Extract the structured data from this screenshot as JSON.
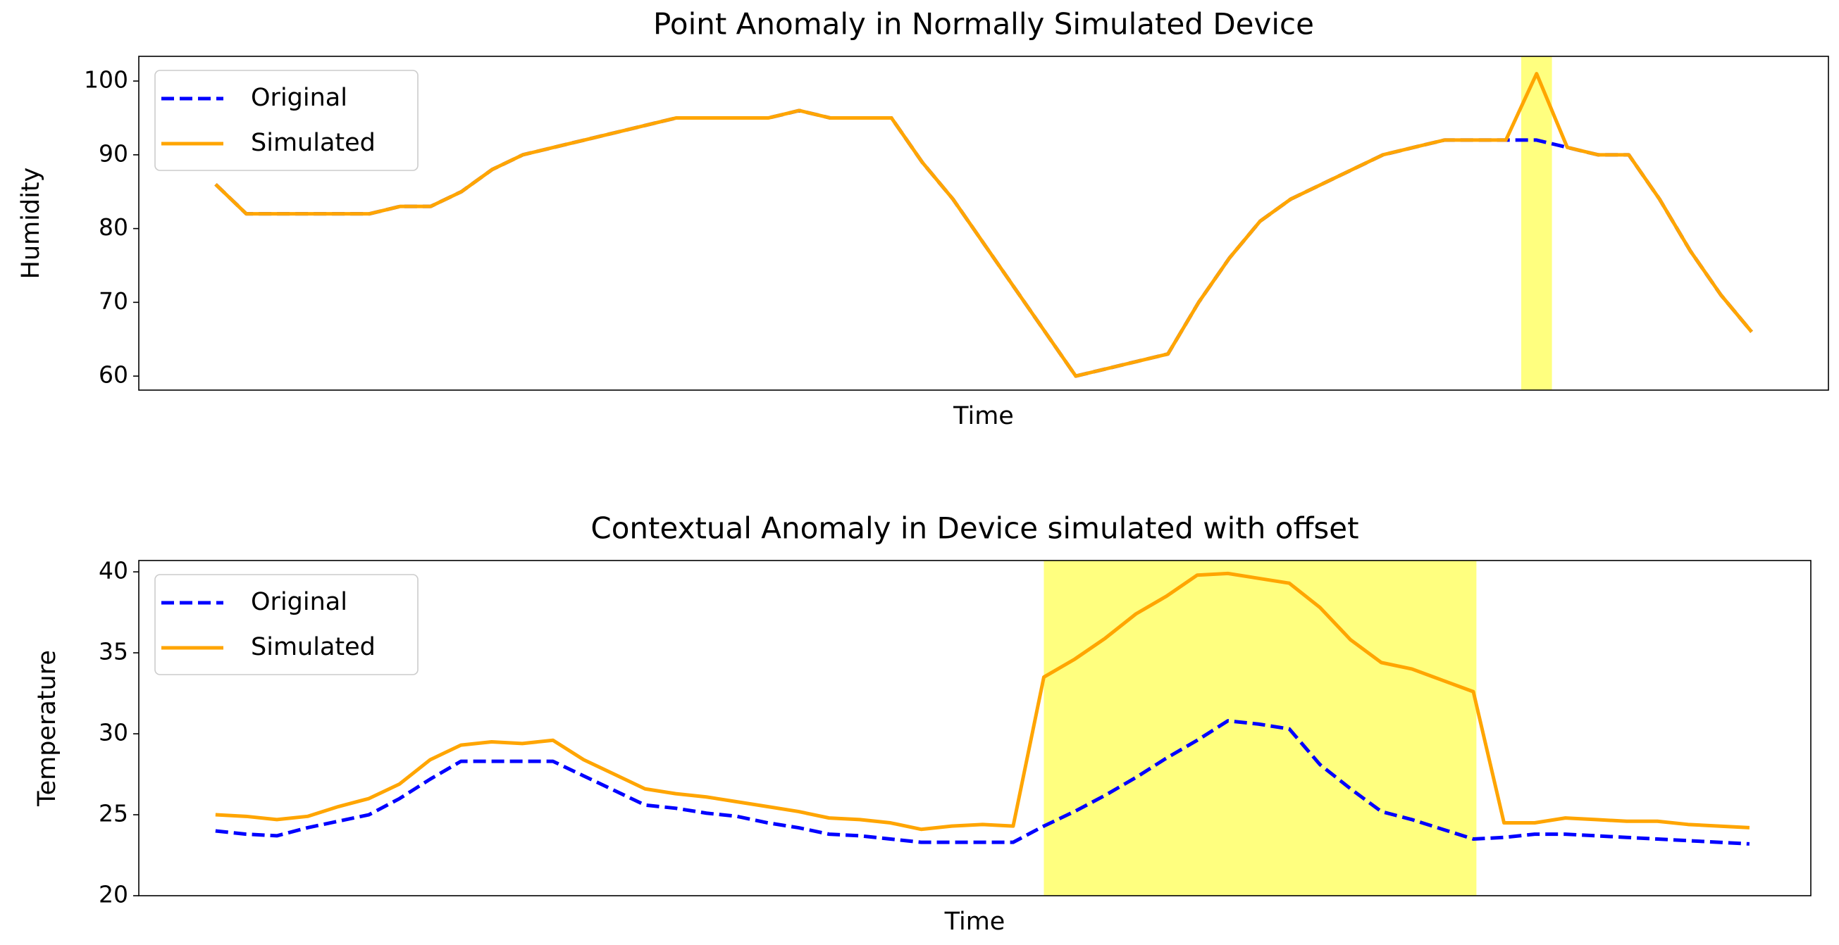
{
  "chart_data": [
    {
      "type": "line",
      "title": "Point Anomaly in Normally Simulated Device",
      "x_label": "Time",
      "y_label": "Humidity",
      "xlim": [
        -2.5,
        52.5
      ],
      "ylim": [
        58.1,
        103.35
      ],
      "yticks": [
        60,
        70,
        80,
        90,
        100
      ],
      "legend": "upper left",
      "highlight": {
        "span": [
          42.5,
          43.5
        ],
        "color": "#ffff00"
      },
      "series": [
        {
          "name": "Original",
          "color": "#0000ff",
          "dash": true,
          "values": [
            86,
            82,
            82,
            82,
            82,
            82,
            83,
            83,
            85,
            88,
            90,
            91,
            92,
            93,
            94,
            95,
            95,
            95,
            95,
            96,
            95,
            95,
            95,
            89,
            84,
            78,
            72,
            66,
            60,
            61,
            62,
            63,
            70,
            76,
            81,
            84,
            86,
            88,
            90,
            91,
            92,
            92,
            92,
            92,
            91,
            90,
            90,
            84,
            77,
            71,
            66
          ]
        },
        {
          "name": "Simulated",
          "color": "#ffa500",
          "dash": false,
          "values": [
            86,
            82,
            82,
            82,
            82,
            82,
            83,
            83,
            85,
            88,
            90,
            91,
            92,
            93,
            94,
            95,
            95,
            95,
            95,
            96,
            95,
            95,
            95,
            89,
            84,
            78,
            72,
            66,
            60,
            61,
            62,
            63,
            70,
            76,
            81,
            84,
            86,
            88,
            90,
            91,
            92,
            92,
            92,
            101,
            91,
            90,
            90,
            84,
            77,
            71,
            66
          ]
        }
      ]
    },
    {
      "type": "line",
      "title": "Contextual Anomaly in Device simulated with offset",
      "x_label": "Time",
      "y_label": "Temperature",
      "xlim": [
        -2.5,
        52
      ],
      "ylim": [
        20,
        40.7
      ],
      "yticks": [
        20,
        25,
        30,
        35,
        40
      ],
      "legend": "upper left",
      "highlight": {
        "span": [
          27,
          41.1
        ],
        "color": "#ffff00"
      },
      "series": [
        {
          "name": "Original",
          "color": "#0000ff",
          "dash": true,
          "values": [
            24.0,
            23.8,
            23.7,
            24.2,
            24.6,
            25.0,
            26.0,
            27.2,
            28.3,
            28.3,
            28.3,
            28.3,
            27.4,
            26.5,
            25.6,
            25.4,
            25.1,
            24.9,
            24.5,
            24.2,
            23.8,
            23.7,
            23.5,
            23.3,
            23.3,
            23.3,
            23.3,
            24.3,
            25.2,
            26.2,
            27.3,
            28.5,
            29.6,
            30.8,
            30.6,
            30.3,
            28.1,
            26.6,
            25.2,
            24.7,
            24.1,
            23.5,
            23.6,
            23.8,
            23.8,
            23.7,
            23.6,
            23.5,
            23.4,
            23.3,
            23.2
          ]
        },
        {
          "name": "Simulated",
          "color": "#ffa500",
          "dash": false,
          "values": [
            25.0,
            24.9,
            24.7,
            24.9,
            25.5,
            26.0,
            26.9,
            28.4,
            29.3,
            29.5,
            29.4,
            29.6,
            28.4,
            27.5,
            26.6,
            26.3,
            26.1,
            25.8,
            25.5,
            25.2,
            24.8,
            24.7,
            24.5,
            24.1,
            24.3,
            24.4,
            24.3,
            33.5,
            34.6,
            35.9,
            37.4,
            38.5,
            39.8,
            39.9,
            39.6,
            39.3,
            37.8,
            35.8,
            34.4,
            34.0,
            33.3,
            32.6,
            24.5,
            24.5,
            24.8,
            24.7,
            24.6,
            24.6,
            24.4,
            24.3,
            24.2
          ]
        }
      ]
    }
  ]
}
